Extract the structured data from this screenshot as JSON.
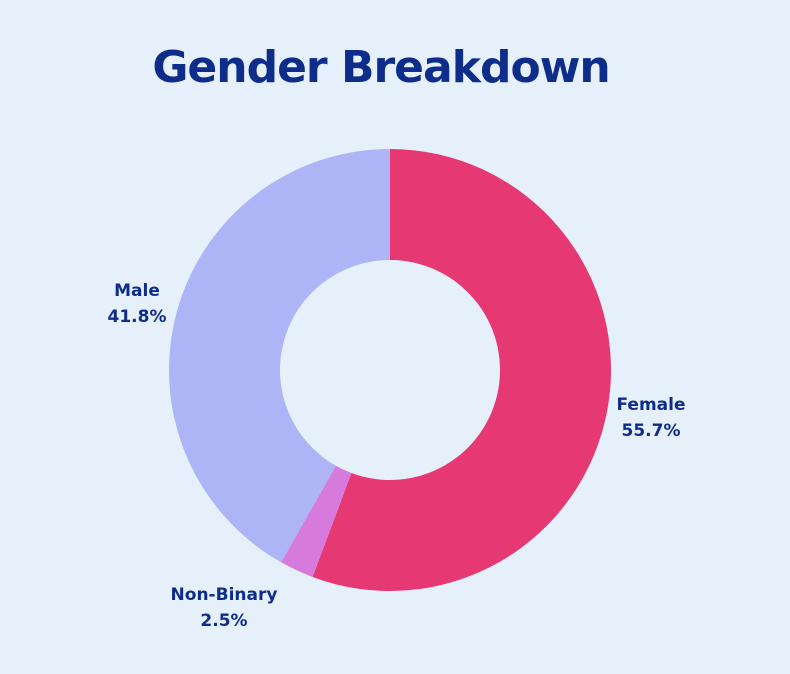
{
  "chart_data": {
    "type": "pie",
    "style": "donut",
    "title": "Gender Breakdown",
    "categories": [
      "Female",
      "Non-Binary",
      "Male"
    ],
    "values": [
      55.7,
      2.5,
      41.8
    ],
    "value_labels": [
      "55.7%",
      "2.5%",
      "41.8%"
    ],
    "colors": [
      "#E63872",
      "#D67BDD",
      "#ADB5F7"
    ],
    "start_angle_deg": 0,
    "direction": "clockwise"
  },
  "background_color": "#E6F0FB",
  "text_color": "#0E2D8A"
}
